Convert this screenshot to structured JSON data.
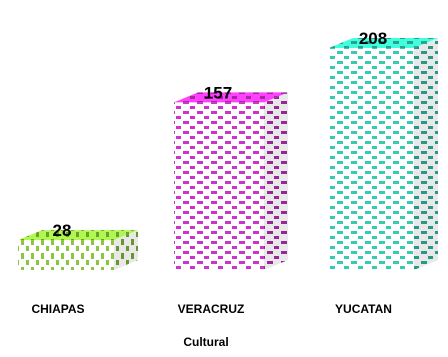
{
  "chart_data": {
    "type": "bar",
    "categories": [
      "CHIAPAS",
      "VERACRUZ",
      "YUCATAN"
    ],
    "values": [
      28,
      157,
      208
    ],
    "xlabel": "Cultural",
    "ylabel": "",
    "ylim": [
      0,
      208
    ],
    "grid": false,
    "legend": "none",
    "style": "3d-box",
    "colors": [
      "#8cc63f",
      "#cc33cc",
      "#33ccb2"
    ]
  }
}
